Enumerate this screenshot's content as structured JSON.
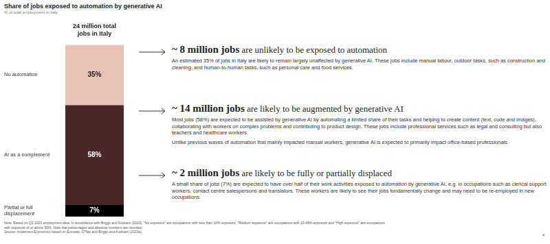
{
  "chart_data": {
    "type": "bar",
    "title": "Share of jobs exposed to automation by generative AI",
    "subtitle": "% of total employment in Italy",
    "categories": [
      "24 million total jobs in Italy"
    ],
    "series": [
      {
        "name": "No automation",
        "color": "#e6c2b7",
        "values": [
          35
        ],
        "value_labels": [
          "35%"
        ]
      },
      {
        "name": "AI as a complement",
        "color": "#4b2729",
        "values": [
          58
        ],
        "value_labels": [
          "58%"
        ]
      },
      {
        "name": "Partial or full displacement",
        "color": "#000000",
        "values": [
          7
        ],
        "value_labels": [
          "7%"
        ]
      }
    ],
    "stacked": true,
    "ylim": [
      0,
      100
    ],
    "grid": false,
    "data_labels": true,
    "tick_labels": "x",
    "annotations": [
      {
        "headline": "~ 8 million jobs",
        "headline_rest": "are unlikely to be exposed to automation",
        "paragraphs": [
          "An estimated 35% of jobs in Italy are likely to remain largely unaffected by generative AI. These jobs include manual labour, outdoor tasks, such as construction and cleaning, and human-to-human tasks, such as personal care and food services."
        ]
      },
      {
        "headline": "~ 14 million jobs",
        "headline_rest": "are likely to be augmented by generative AI",
        "paragraphs": [
          "Most jobs (58%) are expected to be assisted by generative AI by automating a limited share of their tasks and helping to create content (text, code and images), collaborating with workers on complex problems and contributing to product design. These jobs include professional services such as legal and consulting but also teachers and healthcare workers.",
          "Unlike previous waves of automation that mainly impacted manual workers, generative AI is expected to primarily impact office-based professionals."
        ]
      },
      {
        "headline": "~ 2 million jobs",
        "headline_rest": "are likely to be fully or partially displaced",
        "paragraphs": [
          "A small share of jobs (7%) are expected to have over half of their work activities exposed to automation by generative AI, e.g. in occupations such as clerical support workers, contact centre salespersons and translators. These workers are likely to see their jobs fundamentally change and may need to be re-employed in new occupations."
        ]
      }
    ],
    "note": "Note: Based on Q3 2023 employment data. In accordance with Briggs and Kodnani (2023), \"No exposure\" are occupations with less than 10% exposure, \"Medium exposure\" are occupations with 10-49% exposure and \"High exposure\" are occupations with exposure of or above 50%. Note that percentages and absolute numbers are rounded.",
    "source": "Source: Implement Economics based on Eurostat, O*Net and Briggs and Kodnani (2023a).",
    "page": 4
  }
}
